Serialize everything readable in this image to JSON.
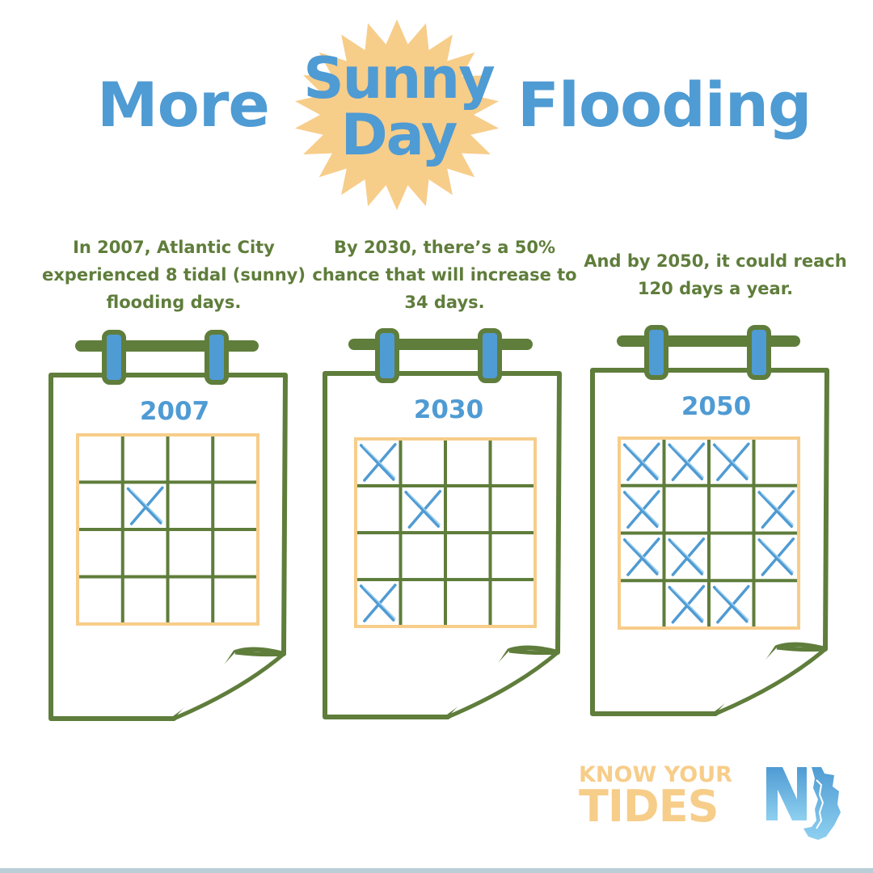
{
  "title": {
    "word_more": "More",
    "word_sunny": "Sunny",
    "word_day": "Day",
    "word_flooding": "Flooding"
  },
  "colors": {
    "blue": "#4f9bd3",
    "green": "#5f7d3b",
    "sun": "#f7cd8a",
    "grid_border": "#f7cd8a"
  },
  "calendars": [
    {
      "caption": "In 2007, Atlantic City experienced 8 tidal (sunny) flooding days.",
      "year": "2007",
      "marks": [
        [
          1,
          1
        ]
      ]
    },
    {
      "caption": "By 2030, there’s a 50% chance that will increase to 34 days.",
      "year": "2030",
      "marks": [
        [
          0,
          0
        ],
        [
          1,
          1
        ],
        [
          3,
          0
        ]
      ]
    },
    {
      "caption": "And by 2050, it could reach 120 days a year.",
      "year": "2050",
      "marks": [
        [
          0,
          0
        ],
        [
          0,
          1
        ],
        [
          0,
          2
        ],
        [
          1,
          0
        ],
        [
          1,
          3
        ],
        [
          2,
          0
        ],
        [
          2,
          1
        ],
        [
          2,
          3
        ],
        [
          3,
          1
        ],
        [
          3,
          2
        ]
      ]
    }
  ],
  "logo": {
    "line1": "KNOW YOUR",
    "line2": "TIDES",
    "mark_icon": "nj-state-logo-icon"
  }
}
